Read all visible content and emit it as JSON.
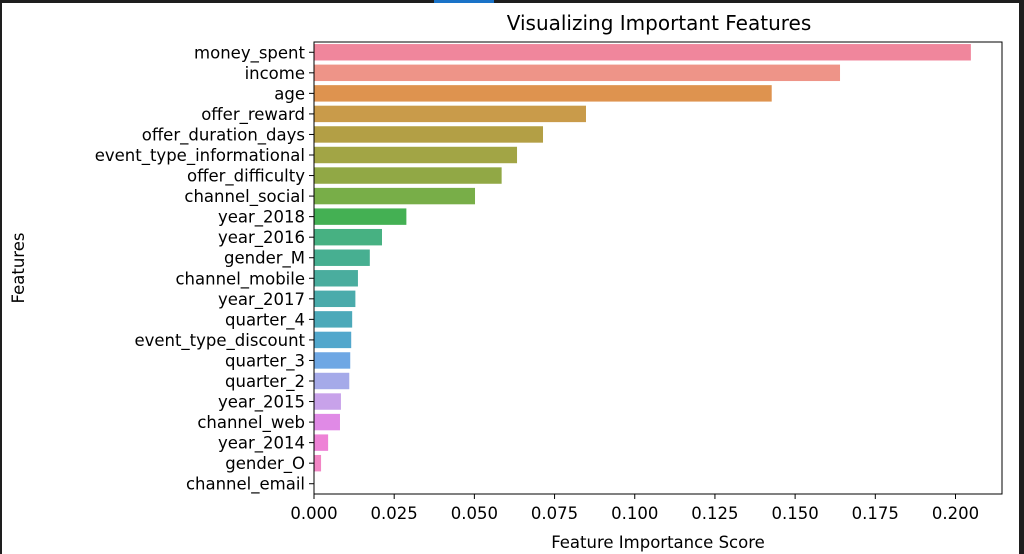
{
  "chart_data": {
    "type": "bar",
    "orientation": "horizontal",
    "title": "Visualizing Important Features",
    "xlabel": "Feature Importance Score",
    "ylabel": "Features",
    "xlim": [
      0,
      0.2145
    ],
    "xticks": [
      "0.000",
      "0.025",
      "0.050",
      "0.075",
      "0.100",
      "0.125",
      "0.150",
      "0.175",
      "0.200"
    ],
    "grid": false,
    "categories": [
      "money_spent",
      "income",
      "age",
      "offer_reward",
      "offer_duration_days",
      "event_type_informational",
      "offer_difficulty",
      "channel_social",
      "year_2018",
      "year_2016",
      "gender_M",
      "channel_mobile",
      "year_2017",
      "quarter_4",
      "event_type_discount",
      "quarter_3",
      "quarter_2",
      "year_2015",
      "channel_web",
      "year_2014",
      "gender_O",
      "channel_email"
    ],
    "values": [
      0.2048,
      0.164,
      0.1427,
      0.0848,
      0.0714,
      0.0633,
      0.0585,
      0.0502,
      0.0288,
      0.0212,
      0.0174,
      0.0137,
      0.0129,
      0.0119,
      0.0116,
      0.0113,
      0.011,
      0.0084,
      0.0081,
      0.0044,
      0.0022,
      0.0
    ],
    "colors": [
      "#f0869c",
      "#ee9488",
      "#de934f",
      "#c99b4a",
      "#b39f45",
      "#a2a545",
      "#91a845",
      "#78ae48",
      "#44b053",
      "#47b182",
      "#47af91",
      "#4aad9e",
      "#4aabab",
      "#4ca9b9",
      "#52a7cc",
      "#6ea7e4",
      "#a5aae9",
      "#c8a2ea",
      "#e08ae6",
      "#ee82d6",
      "#f285c4",
      "#f48ab6"
    ]
  }
}
